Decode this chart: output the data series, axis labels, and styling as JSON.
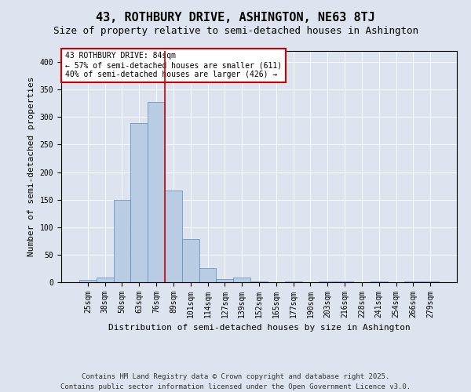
{
  "title": "43, ROTHBURY DRIVE, ASHINGTON, NE63 8TJ",
  "subtitle": "Size of property relative to semi-detached houses in Ashington",
  "xlabel": "Distribution of semi-detached houses by size in Ashington",
  "ylabel": "Number of semi-detached properties",
  "bar_labels": [
    "25sqm",
    "38sqm",
    "50sqm",
    "63sqm",
    "76sqm",
    "89sqm",
    "101sqm",
    "114sqm",
    "127sqm",
    "139sqm",
    "152sqm",
    "165sqm",
    "177sqm",
    "190sqm",
    "203sqm",
    "216sqm",
    "228sqm",
    "241sqm",
    "254sqm",
    "266sqm",
    "279sqm"
  ],
  "bar_values": [
    4,
    8,
    150,
    289,
    328,
    166,
    78,
    26,
    5,
    8,
    2,
    0,
    2,
    0,
    2,
    1,
    0,
    1,
    0,
    1,
    1
  ],
  "bar_color": "#b8cce4",
  "bar_edge_color": "#5a8ab8",
  "annotation_title": "43 ROTHBURY DRIVE: 84sqm",
  "annotation_line1": "← 57% of semi-detached houses are smaller (611)",
  "annotation_line2": "40% of semi-detached houses are larger (426) →",
  "annotation_box_color": "#ffffff",
  "annotation_box_edge": "#cc0000",
  "vline_color": "#cc0000",
  "vline_x": 4.5,
  "ylim": [
    0,
    420
  ],
  "yticks": [
    0,
    50,
    100,
    150,
    200,
    250,
    300,
    350,
    400
  ],
  "background_color": "#dde4ef",
  "plot_bg_color": "#dde4ef",
  "footer1": "Contains HM Land Registry data © Crown copyright and database right 2025.",
  "footer2": "Contains public sector information licensed under the Open Government Licence v3.0.",
  "title_fontsize": 11,
  "subtitle_fontsize": 9,
  "ylabel_fontsize": 8,
  "xlabel_fontsize": 8,
  "tick_fontsize": 7,
  "annotation_fontsize": 7,
  "footer_fontsize": 6.5
}
